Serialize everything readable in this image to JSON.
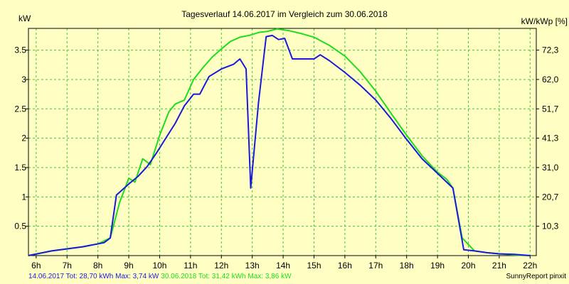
{
  "chart_data": {
    "type": "line",
    "title": "Tagesverlauf 14.06.2017 im Vergleich zum 30.06.2018",
    "ylabel_left": "kW",
    "ylabel_right": "kW/kWp [%]",
    "x_ticks": [
      "6h",
      "7h",
      "8h",
      "9h",
      "10h",
      "11h",
      "12h",
      "13h",
      "14h",
      "15h",
      "16h",
      "17h",
      "18h",
      "19h",
      "20h",
      "21h",
      "22h"
    ],
    "x_range": [
      5.75,
      22.2
    ],
    "y_ticks_left": [
      "0.5",
      "1",
      "1.5",
      "2",
      "2.5",
      "3",
      "3.5"
    ],
    "y_ticks_right": [
      "10,3",
      "20,7",
      "31,0",
      "41,3",
      "51,7",
      "62,0",
      "72,3"
    ],
    "y_range": [
      0,
      3.87
    ],
    "grid": true,
    "background": "#ffffc4",
    "series": [
      {
        "name": "14.06.2017",
        "color": "#1a1ad8",
        "x": [
          5.75,
          6.5,
          7.5,
          8.2,
          8.4,
          8.6,
          9.0,
          9.3,
          9.6,
          9.9,
          10.2,
          10.5,
          10.8,
          11.1,
          11.3,
          11.6,
          12.0,
          12.4,
          12.6,
          12.8,
          12.95,
          13.2,
          13.45,
          13.65,
          13.85,
          14.05,
          14.3,
          14.6,
          15.0,
          15.2,
          15.5,
          16.0,
          16.5,
          17.0,
          17.5,
          18.0,
          18.5,
          19.0,
          19.3,
          19.5,
          19.85,
          20.2,
          20.6,
          21.0,
          21.5,
          22.0
        ],
        "y": [
          0.0,
          0.08,
          0.15,
          0.22,
          0.3,
          1.03,
          1.22,
          1.35,
          1.52,
          1.75,
          2.0,
          2.25,
          2.55,
          2.75,
          2.75,
          3.05,
          3.18,
          3.26,
          3.35,
          3.18,
          1.15,
          2.6,
          3.73,
          3.75,
          3.68,
          3.7,
          3.35,
          3.35,
          3.35,
          3.42,
          3.32,
          3.12,
          2.9,
          2.65,
          2.33,
          1.98,
          1.65,
          1.4,
          1.25,
          1.15,
          0.1,
          0.08,
          0.05,
          0.03,
          0.02,
          0.0
        ]
      },
      {
        "name": "30.06.2018",
        "color": "#1edc1e",
        "x": [
          5.75,
          6.5,
          7.5,
          8.0,
          8.4,
          8.7,
          9.0,
          9.2,
          9.45,
          9.7,
          10.0,
          10.3,
          10.5,
          10.8,
          11.1,
          11.4,
          11.7,
          12.0,
          12.3,
          12.6,
          12.9,
          13.2,
          13.5,
          13.8,
          14.2,
          14.6,
          15.0,
          15.5,
          16.0,
          16.5,
          17.0,
          17.5,
          18.0,
          18.5,
          19.0,
          19.3,
          19.5,
          19.8,
          20.2,
          20.6,
          21.0,
          21.5,
          22.0
        ],
        "y": [
          0.0,
          0.08,
          0.15,
          0.2,
          0.3,
          0.9,
          1.32,
          1.25,
          1.65,
          1.55,
          2.05,
          2.45,
          2.58,
          2.65,
          3.0,
          3.2,
          3.38,
          3.52,
          3.65,
          3.72,
          3.75,
          3.8,
          3.82,
          3.86,
          3.83,
          3.78,
          3.72,
          3.58,
          3.4,
          3.13,
          2.8,
          2.42,
          2.05,
          1.7,
          1.42,
          1.3,
          1.15,
          0.3,
          0.08,
          0.05,
          0.03,
          0.01,
          0.0
        ]
      }
    ]
  },
  "footer": {
    "s1_text": "14.06.2017 Tot: 28,70 kWh Max: 3,74 kW",
    "s2_text": "30.06.2018 Tot: 31,42 kWh Max: 3,86 kW",
    "credit": "SunnyReport pinxit"
  }
}
